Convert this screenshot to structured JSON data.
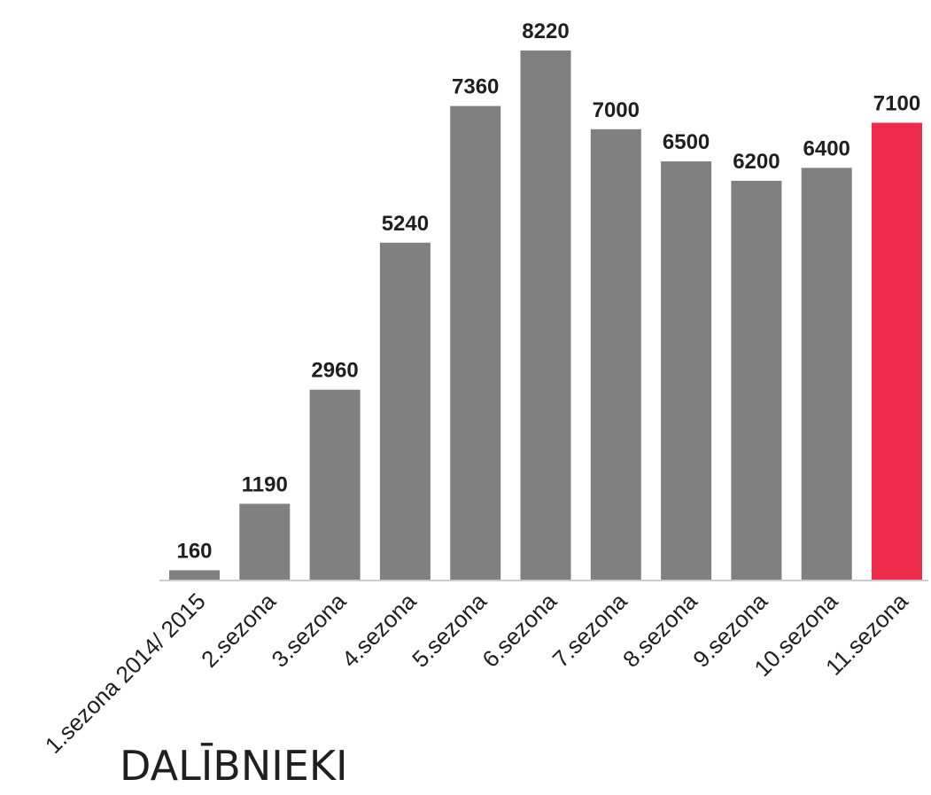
{
  "chart_data": {
    "type": "bar",
    "title": "DALĪBNIEKI",
    "categories": [
      "1.sezona 2014/ 2015",
      "2.sezona",
      "3.sezona",
      "4.sezona",
      "5.sezona",
      "6.sezona",
      "7.sezona",
      "8.sezona",
      "9.sezona",
      "10.sezona",
      "11.sezona"
    ],
    "values": [
      160,
      1190,
      2960,
      5240,
      7360,
      8220,
      7000,
      6500,
      6200,
      6400,
      7100
    ],
    "ylim": [
      0,
      8220
    ],
    "grid": false,
    "legend": "none",
    "colors": {
      "bar": "#808080",
      "highlight": "#ef2b4b",
      "axis": "#cccccc",
      "text": "#1f1f1f"
    },
    "highlight_index": 10
  }
}
